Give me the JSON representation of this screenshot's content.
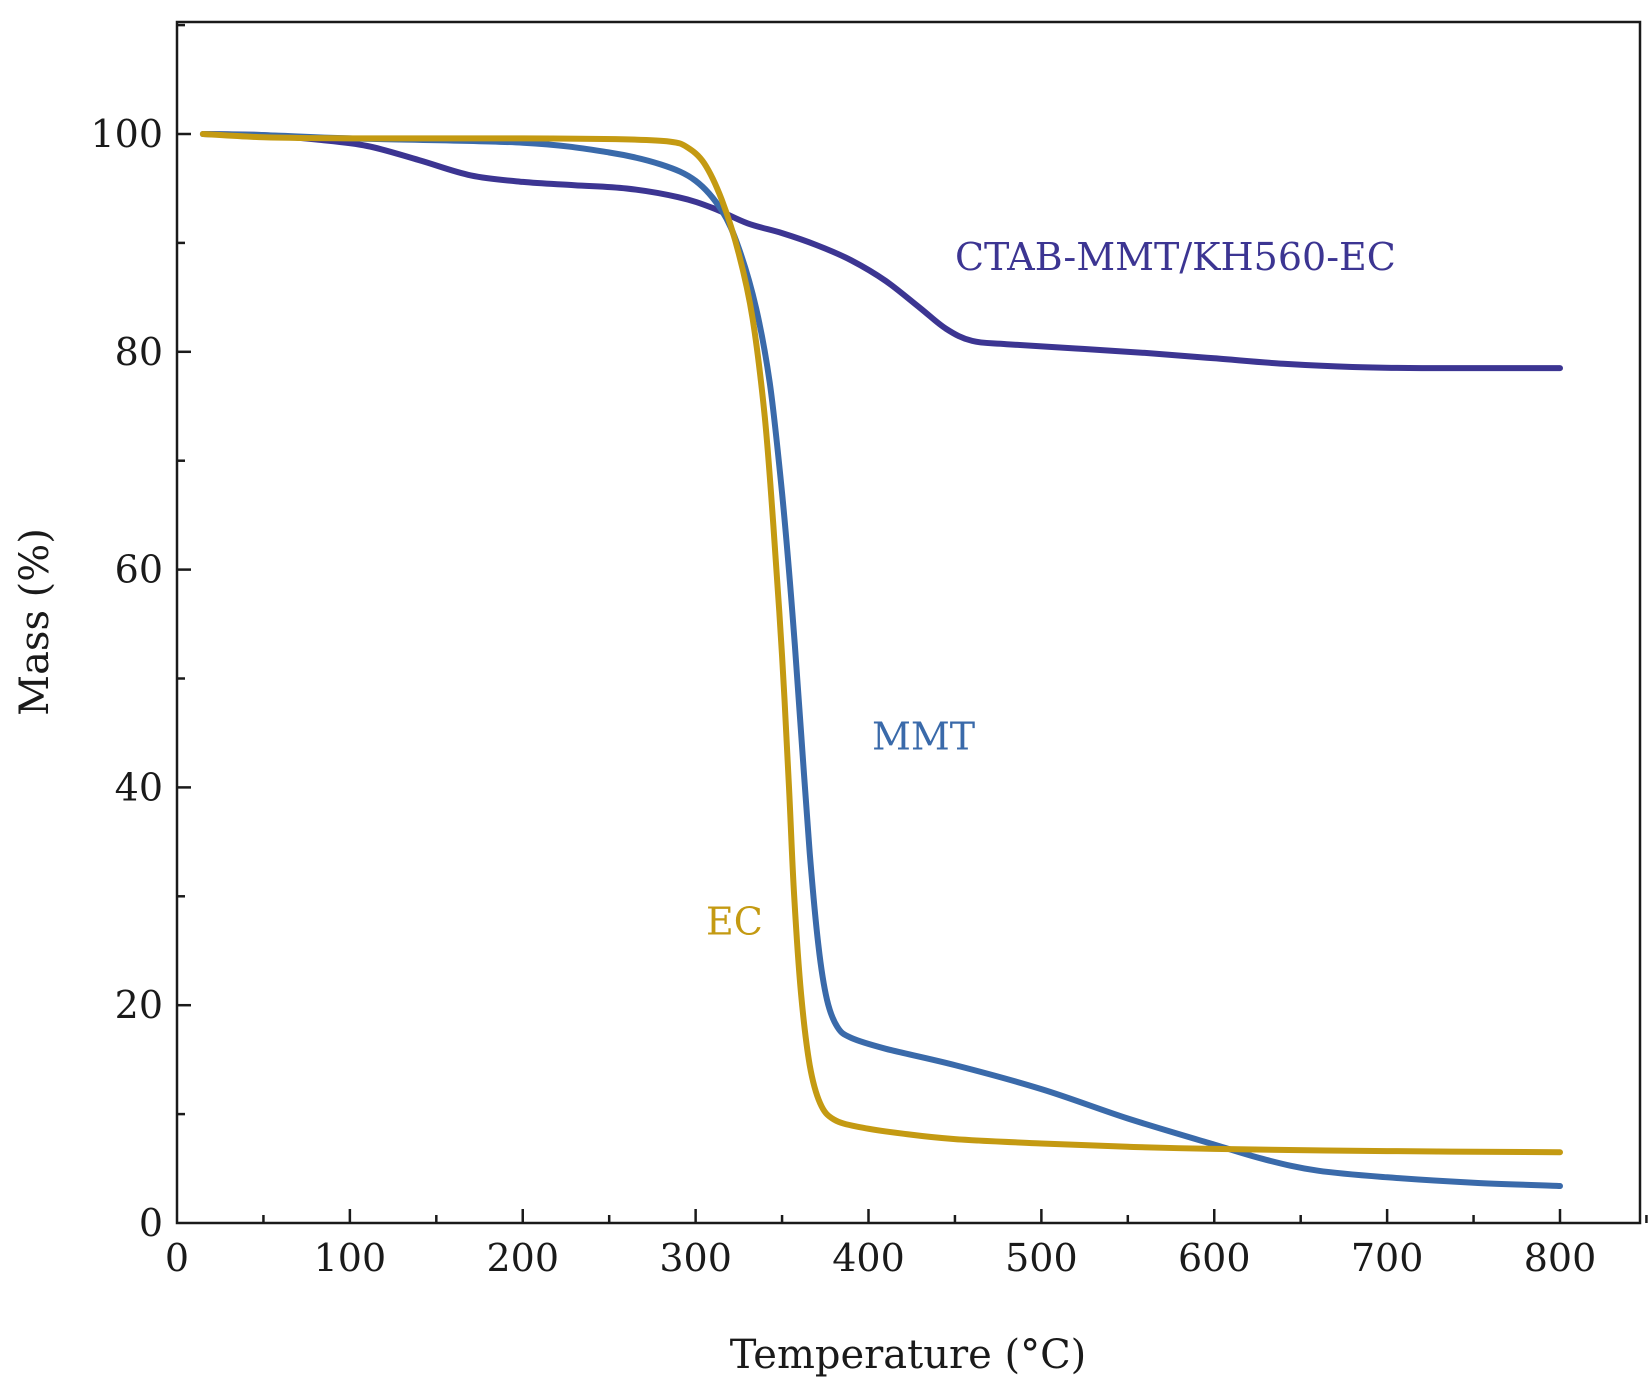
{
  "chart_data": {
    "type": "line",
    "title": "",
    "xlabel": "Temperature (°C)",
    "ylabel": "Mass (%)",
    "xlim": [
      0,
      850
    ],
    "ylim": [
      0,
      110
    ],
    "xticks": [
      0,
      100,
      200,
      300,
      400,
      500,
      600,
      700,
      800
    ],
    "yticks": [
      0,
      20,
      40,
      60,
      80,
      100
    ],
    "x_minor_step": 50,
    "y_minor_step": 10,
    "grid": false,
    "legend": "inline labels",
    "series": [
      {
        "name": "CTAB-MMT/KH560-EC",
        "color": "#3c3592",
        "label_at": [
          450,
          87.5
        ],
        "points": [
          [
            15,
            100
          ],
          [
            50,
            99.9
          ],
          [
            80,
            99.5
          ],
          [
            110,
            98.9
          ],
          [
            140,
            97.6
          ],
          [
            170,
            96.2
          ],
          [
            200,
            95.6
          ],
          [
            230,
            95.3
          ],
          [
            260,
            95.0
          ],
          [
            290,
            94.2
          ],
          [
            310,
            93.2
          ],
          [
            330,
            91.8
          ],
          [
            350,
            90.9
          ],
          [
            370,
            89.8
          ],
          [
            390,
            88.4
          ],
          [
            410,
            86.5
          ],
          [
            430,
            84.0
          ],
          [
            445,
            82.1
          ],
          [
            460,
            81.0
          ],
          [
            480,
            80.7
          ],
          [
            520,
            80.3
          ],
          [
            560,
            79.9
          ],
          [
            600,
            79.4
          ],
          [
            640,
            78.9
          ],
          [
            680,
            78.6
          ],
          [
            720,
            78.5
          ],
          [
            760,
            78.5
          ],
          [
            800,
            78.5
          ]
        ]
      },
      {
        "name": "MMT",
        "color": "#3a6aaa",
        "label_at": [
          402,
          43.5
        ],
        "points": [
          [
            15,
            100
          ],
          [
            50,
            99.9
          ],
          [
            100,
            99.6
          ],
          [
            200,
            99.2
          ],
          [
            250,
            98.3
          ],
          [
            280,
            97.2
          ],
          [
            300,
            95.7
          ],
          [
            315,
            93.0
          ],
          [
            325,
            89.5
          ],
          [
            335,
            84.0
          ],
          [
            343,
            77.0
          ],
          [
            350,
            67.0
          ],
          [
            356,
            56.0
          ],
          [
            361,
            45.0
          ],
          [
            366,
            34.0
          ],
          [
            371,
            25.5
          ],
          [
            376,
            20.5
          ],
          [
            382,
            18.0
          ],
          [
            390,
            17.0
          ],
          [
            410,
            16.0
          ],
          [
            450,
            14.5
          ],
          [
            500,
            12.3
          ],
          [
            550,
            9.6
          ],
          [
            600,
            7.2
          ],
          [
            630,
            5.8
          ],
          [
            660,
            4.8
          ],
          [
            700,
            4.2
          ],
          [
            750,
            3.7
          ],
          [
            800,
            3.4
          ]
        ]
      },
      {
        "name": "EC",
        "color": "#c49a12",
        "label_at": [
          306,
          26.5
        ],
        "points": [
          [
            15,
            100
          ],
          [
            50,
            99.7
          ],
          [
            100,
            99.6
          ],
          [
            200,
            99.6
          ],
          [
            260,
            99.5
          ],
          [
            285,
            99.3
          ],
          [
            295,
            98.8
          ],
          [
            305,
            97.3
          ],
          [
            315,
            94.0
          ],
          [
            325,
            89.0
          ],
          [
            333,
            83.0
          ],
          [
            340,
            74.0
          ],
          [
            345,
            64.0
          ],
          [
            350,
            52.0
          ],
          [
            354,
            40.0
          ],
          [
            357,
            30.0
          ],
          [
            361,
            21.0
          ],
          [
            366,
            14.5
          ],
          [
            372,
            11.0
          ],
          [
            380,
            9.5
          ],
          [
            395,
            8.8
          ],
          [
            420,
            8.2
          ],
          [
            450,
            7.7
          ],
          [
            500,
            7.3
          ],
          [
            550,
            7.0
          ],
          [
            600,
            6.8
          ],
          [
            700,
            6.6
          ],
          [
            800,
            6.5
          ]
        ]
      }
    ]
  }
}
